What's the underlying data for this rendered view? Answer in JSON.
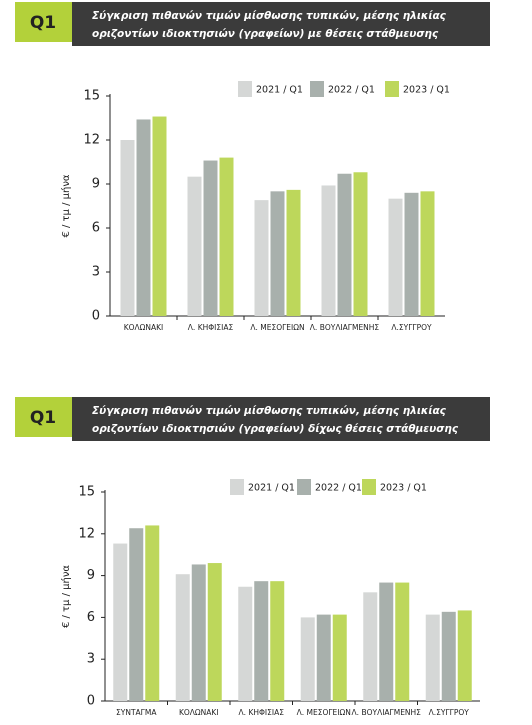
{
  "chart_data": [
    {
      "type": "bar",
      "badge": "Q1",
      "title": [
        "Σύγκριση πιθανών τιμών μίσθωσης τυπικών, μέσης ηλικίας",
        "οριζοντίων ιδιοκτησιών (γραφείων) με θέσεις στάθμευσης"
      ],
      "y_label": "€ / τμ / μήνα",
      "categories": [
        "ΚΟΛΩΝΑΚΙ",
        "Λ. ΚΗΦΙΣΙΑΣ",
        "Λ. ΜΕΣΟΓΕΙΩΝ",
        "Λ. ΒΟΥΛΙΑΓΜΕΝΗΣ",
        "Λ.ΣΥΓΓΡΟΥ"
      ],
      "series": [
        {
          "name": "2021 / Q1",
          "color": "#d5d7d6",
          "values": [
            12.0,
            9.5,
            7.9,
            8.9,
            8.0
          ]
        },
        {
          "name": "2022 / Q1",
          "color": "#a8b0ac",
          "values": [
            13.4,
            10.6,
            8.5,
            9.7,
            8.4
          ]
        },
        {
          "name": "2023 / Q1",
          "color": "#bdd75b",
          "values": [
            13.6,
            10.8,
            8.6,
            9.8,
            8.5
          ]
        }
      ],
      "ylim": [
        0,
        15
      ],
      "yticks": [
        0,
        3,
        6,
        9,
        12,
        15
      ]
    },
    {
      "type": "bar",
      "badge": "Q1",
      "title": [
        "Σύγκριση πιθανών τιμών μίσθωσης τυπικών, μέσης ηλικίας",
        "οριζοντίων ιδιοκτησιών (γραφείων) δίχως θέσεις στάθμευσης"
      ],
      "y_label": "€ / τμ / μήνα",
      "categories": [
        "ΣΥΝΤΑΓΜΑ",
        "ΚΟΛΩΝΑΚΙ",
        "Λ. ΚΗΦΙΣΙΑΣ",
        "Λ. ΜΕΣΟΓΕΙΩΝ",
        "Λ. ΒΟΥΛΙΑΓΜΕΝΗΣ",
        "Λ.ΣΥΓΓΡΟΥ"
      ],
      "series": [
        {
          "name": "2021 / Q1",
          "color": "#d5d7d6",
          "values": [
            11.3,
            9.1,
            8.2,
            6.0,
            7.8,
            6.2
          ]
        },
        {
          "name": "2022 / Q1",
          "color": "#a8b0ac",
          "values": [
            12.4,
            9.8,
            8.6,
            6.2,
            8.5,
            6.4
          ]
        },
        {
          "name": "2023 / Q1",
          "color": "#bdd75b",
          "values": [
            12.6,
            9.9,
            8.6,
            6.2,
            8.5,
            6.5
          ]
        }
      ],
      "ylim": [
        0,
        15
      ],
      "yticks": [
        0,
        3,
        6,
        9,
        12,
        15
      ]
    }
  ]
}
